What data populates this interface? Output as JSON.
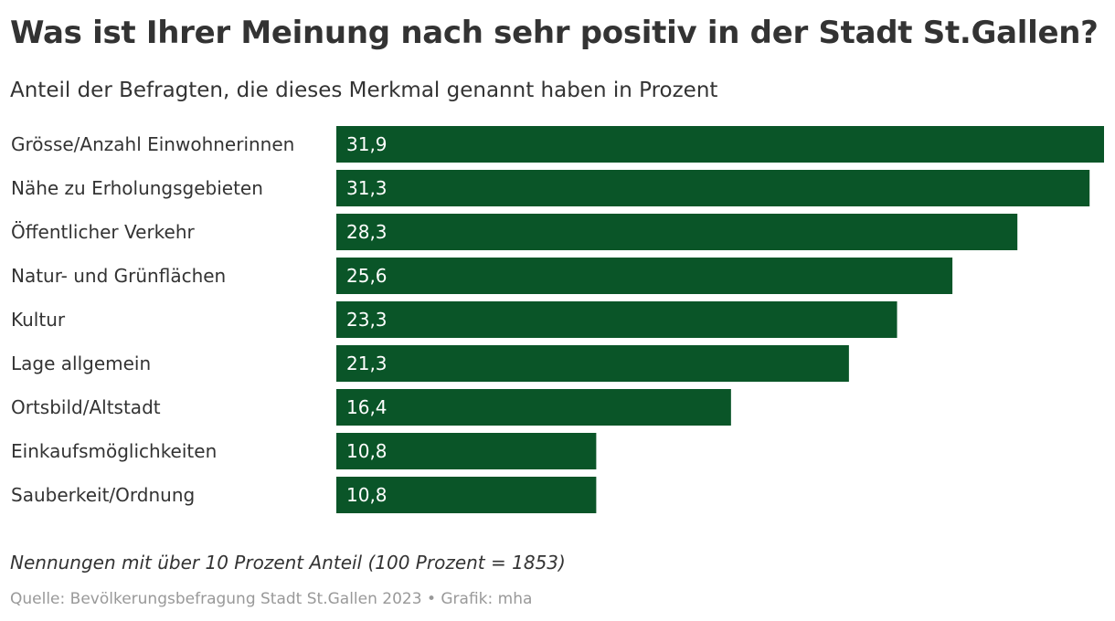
{
  "header": {
    "title": "Was ist Ihrer Meinung nach sehr positiv in der Stadt St.Gallen?",
    "subtitle": "Anteil der Befragten, die dieses Merkmal genannt haben in Prozent"
  },
  "chart_data": {
    "type": "bar",
    "orientation": "horizontal",
    "categories": [
      "Grösse/Anzahl Einwohnerinnen",
      "Nähe zu Erholungsgebieten",
      "Öffentlicher Verkehr",
      "Natur- und Grünflächen",
      "Kultur",
      "Lage allgemein",
      "Ortsbild/Altstadt",
      "Einkaufsmöglichkeiten",
      "Sauberkeit/Ordnung"
    ],
    "values": [
      31.9,
      31.3,
      28.3,
      25.6,
      23.3,
      21.3,
      16.4,
      10.8,
      10.8
    ],
    "value_labels": [
      "31,9",
      "31,3",
      "28,3",
      "25,6",
      "23,3",
      "21,3",
      "16,4",
      "10,8",
      "10,8"
    ],
    "xlim": [
      0,
      31.9
    ],
    "grid": false,
    "legend": "none",
    "bar_color": "#0a5528",
    "title": "Was ist Ihrer Meinung nach sehr positiv in der Stadt St.Gallen?",
    "subtitle": "Anteil der Befragten, die dieses Merkmal genannt haben in Prozent"
  },
  "footer": {
    "note": "Nennungen mit über 10 Prozent Anteil (100 Prozent = 1853)",
    "source": "Quelle: Bevölkerungsbefragung Stadt St.Gallen 2023 • Grafik: mha"
  }
}
